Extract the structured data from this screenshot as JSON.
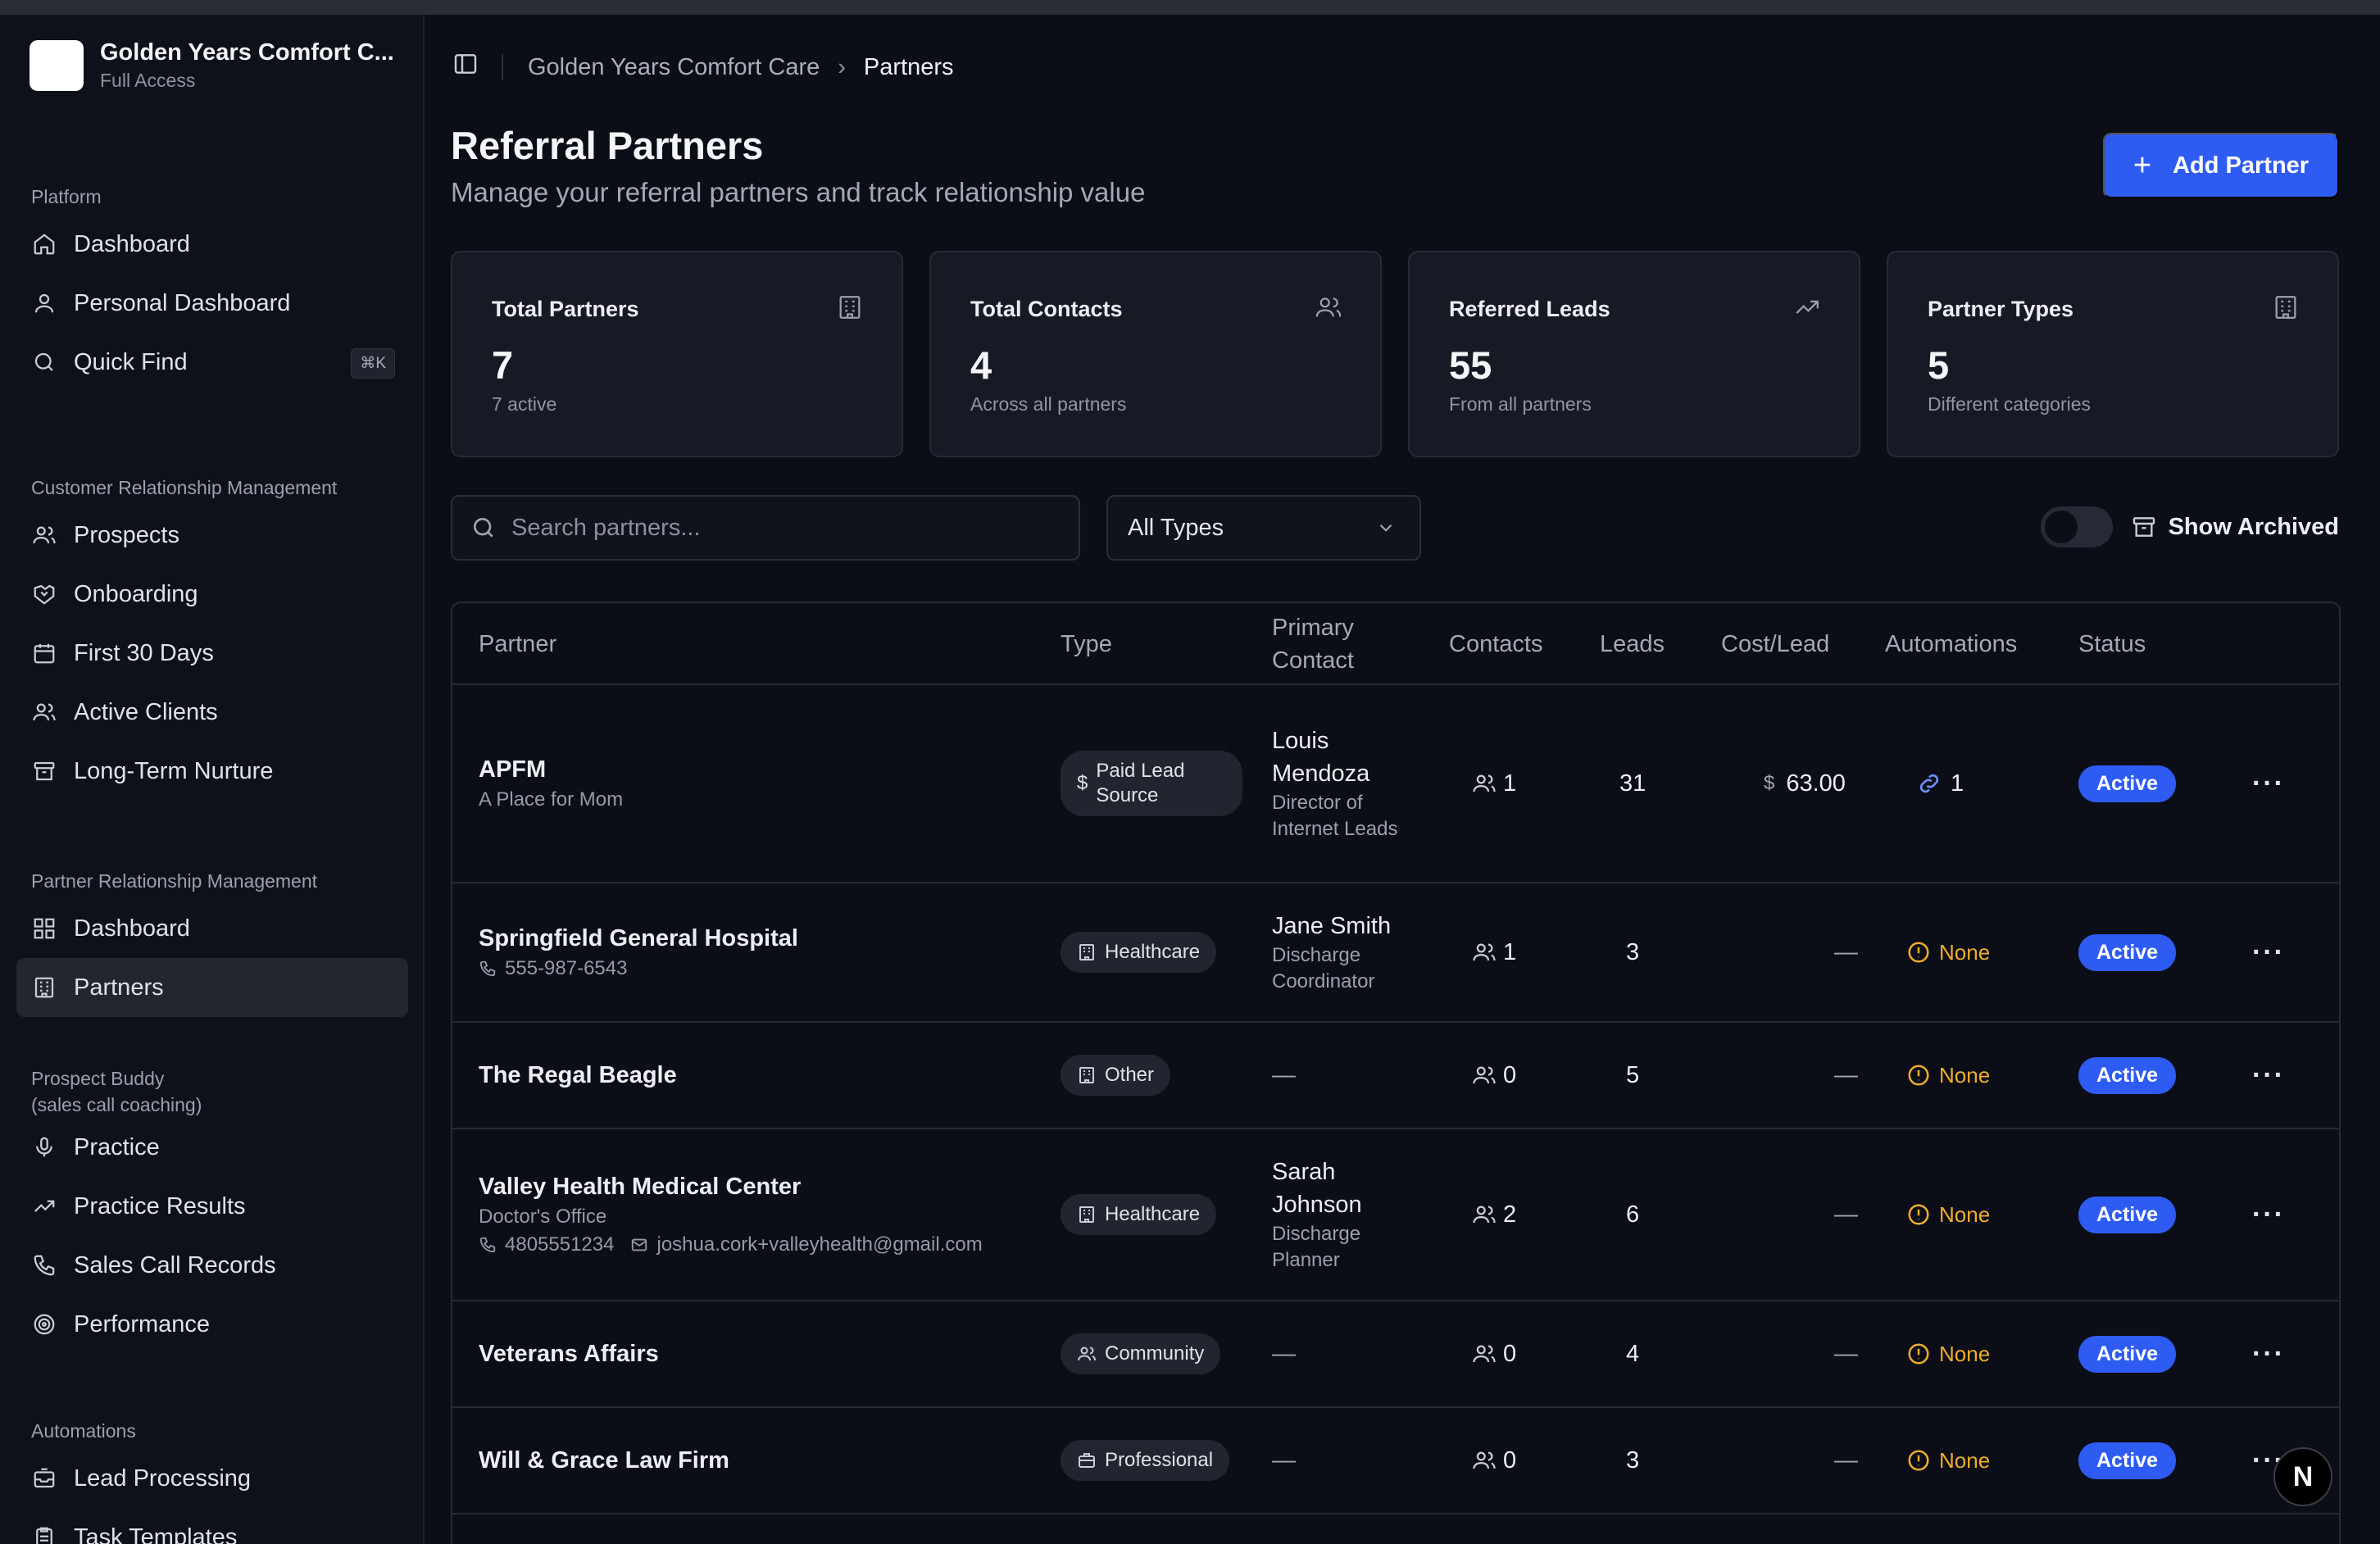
{
  "org": {
    "name": "Golden Years Comfort C...",
    "access": "Full Access"
  },
  "sidebar": {
    "platform": {
      "title": "Platform",
      "items": [
        {
          "label": "Dashboard",
          "icon": "home-icon"
        },
        {
          "label": "Personal Dashboard",
          "icon": "user-icon"
        },
        {
          "label": "Quick Find",
          "icon": "search-icon",
          "shortcut": "⌘K"
        }
      ]
    },
    "crm": {
      "title": "Customer Relationship Management",
      "items": [
        {
          "label": "Prospects",
          "icon": "users-icon"
        },
        {
          "label": "Onboarding",
          "icon": "handshake-icon"
        },
        {
          "label": "First 30 Days",
          "icon": "calendar-icon"
        },
        {
          "label": "Active Clients",
          "icon": "user-check-icon"
        },
        {
          "label": "Long-Term Nurture",
          "icon": "archive-icon"
        }
      ]
    },
    "prm": {
      "title": "Partner Relationship Management",
      "items": [
        {
          "label": "Dashboard",
          "icon": "grid-icon"
        },
        {
          "label": "Partners",
          "icon": "building-icon",
          "active": true
        }
      ]
    },
    "buddy": {
      "title": "Prospect Buddy",
      "subtitle": "(sales call coaching)",
      "items": [
        {
          "label": "Practice",
          "icon": "mic-icon"
        },
        {
          "label": "Practice Results",
          "icon": "trend-icon"
        },
        {
          "label": "Sales Call Records",
          "icon": "phone-icon"
        },
        {
          "label": "Performance",
          "icon": "target-icon"
        }
      ]
    },
    "automations": {
      "title": "Automations",
      "items": [
        {
          "label": "Lead Processing",
          "icon": "inbox-icon"
        },
        {
          "label": "Task Templates",
          "icon": "clipboard-icon"
        }
      ]
    }
  },
  "breadcrumb": {
    "parent": "Golden Years Comfort Care",
    "current": "Partners"
  },
  "page": {
    "title": "Referral Partners",
    "subtitle": "Manage your referral partners and track relationship value",
    "add_button": "Add Partner"
  },
  "stats": [
    {
      "title": "Total Partners",
      "value": "7",
      "sub": "7 active",
      "icon": "building-icon"
    },
    {
      "title": "Total Contacts",
      "value": "4",
      "sub": "Across all partners",
      "icon": "users-icon"
    },
    {
      "title": "Referred Leads",
      "value": "55",
      "sub": "From all partners",
      "icon": "trend-icon"
    },
    {
      "title": "Partner Types",
      "value": "5",
      "sub": "Different categories",
      "icon": "building-icon"
    }
  ],
  "filters": {
    "search_placeholder": "Search partners...",
    "type_selected": "All Types",
    "show_archived": "Show Archived"
  },
  "table": {
    "headers": [
      "Partner",
      "Type",
      "Primary Contact",
      "Contacts",
      "Leads",
      "Cost/Lead",
      "Automations",
      "Status"
    ],
    "rows": [
      {
        "name": "APFM",
        "sub": "A Place for Mom",
        "type": "Paid Lead Source",
        "contact_name": "Louis Mendoza",
        "contact_role": "Director of Internet Leads",
        "contacts": "1",
        "leads": "31",
        "cost": "63.00",
        "automations": "1",
        "status": "Active"
      },
      {
        "name": "Springfield General Hospital",
        "phone": "555-987-6543",
        "type": "Healthcare",
        "contact_name": "Jane Smith",
        "contact_role": "Discharge Coordinator",
        "contacts": "1",
        "leads": "3",
        "cost": "—",
        "automations": "None",
        "status": "Active"
      },
      {
        "name": "The Regal Beagle",
        "type": "Other",
        "contact_name": "—",
        "contacts": "0",
        "leads": "5",
        "cost": "—",
        "automations": "None",
        "status": "Active"
      },
      {
        "name": "Valley Health Medical Center",
        "sub": "Doctor's Office",
        "phone": "4805551234",
        "email": "joshua.cork+valleyhealth@gmail.com",
        "type": "Healthcare",
        "contact_name": "Sarah Johnson",
        "contact_role": "Discharge Planner",
        "contacts": "2",
        "leads": "6",
        "cost": "—",
        "automations": "None",
        "status": "Active"
      },
      {
        "name": "Veterans Affairs",
        "type": "Community",
        "contact_name": "—",
        "contacts": "0",
        "leads": "4",
        "cost": "—",
        "automations": "None",
        "status": "Active"
      },
      {
        "name": "Will & Grace Law Firm",
        "type": "Professional",
        "contact_name": "—",
        "contacts": "0",
        "leads": "3",
        "cost": "—",
        "automations": "None",
        "status": "Active"
      }
    ]
  },
  "floating_badge": "N",
  "colors": {
    "accent": "#2e5cf2",
    "warning": "#f0ad2c",
    "background": "#0c0e17",
    "card": "#171a25"
  }
}
